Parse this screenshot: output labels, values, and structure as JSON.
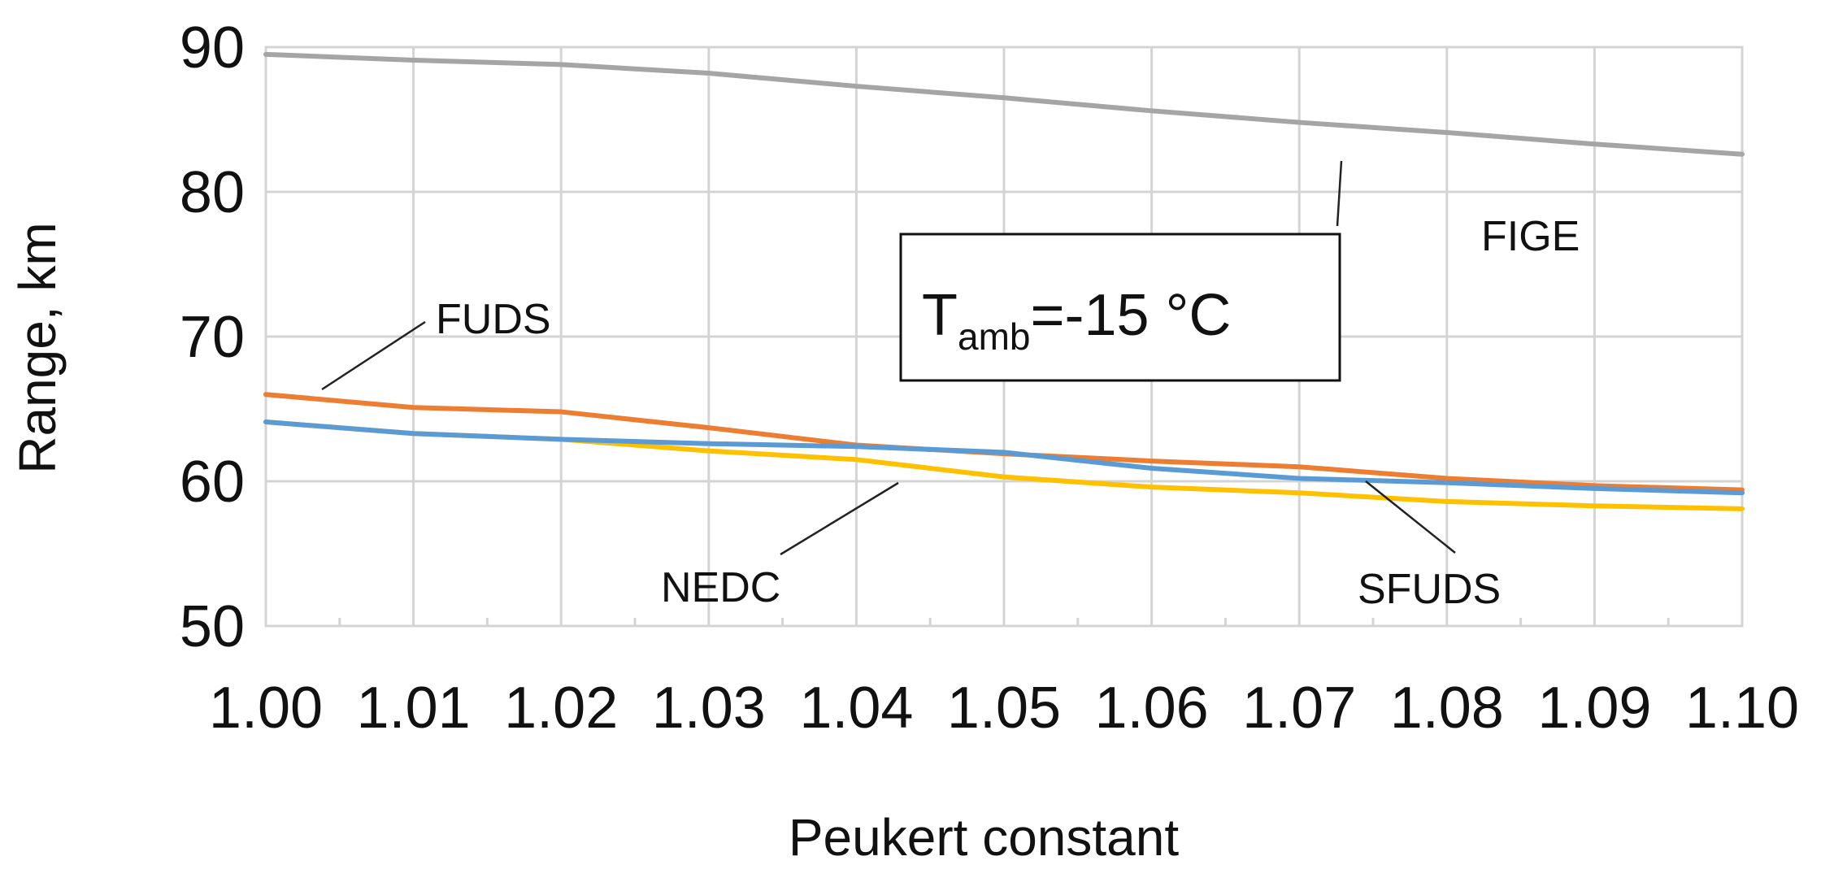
{
  "chart_data": {
    "type": "line",
    "title": "",
    "xlabel": "Peukert constant",
    "ylabel": "Range, km",
    "xlim": [
      1.0,
      1.1
    ],
    "ylim": [
      50,
      90
    ],
    "x": [
      1.0,
      1.01,
      1.02,
      1.03,
      1.04,
      1.05,
      1.06,
      1.07,
      1.08,
      1.09,
      1.1
    ],
    "x_tick_labels": [
      "1.00",
      "1.01",
      "1.02",
      "1.03",
      "1.04",
      "1.05",
      "1.06",
      "1.07",
      "1.08",
      "1.09",
      "1.10"
    ],
    "y_ticks": [
      50,
      60,
      70,
      80,
      90
    ],
    "y_tick_labels": [
      "50",
      "60",
      "70",
      "80",
      "90"
    ],
    "grid": true,
    "legend": "inline labels",
    "series": [
      {
        "name": "FIGE",
        "color": "#a5a5a5",
        "values": [
          89.5,
          89.1,
          88.8,
          88.2,
          87.3,
          86.5,
          85.6,
          84.8,
          84.1,
          83.3,
          82.6
        ]
      },
      {
        "name": "FUDS",
        "color": "#ed7d31",
        "values": [
          66.0,
          65.1,
          64.8,
          63.7,
          62.5,
          61.9,
          61.4,
          61.0,
          60.2,
          59.7,
          59.4
        ]
      },
      {
        "name": "SFUDS",
        "color": "#5b9bd5",
        "values": [
          64.1,
          63.3,
          62.9,
          62.6,
          62.4,
          62.0,
          60.9,
          60.2,
          59.9,
          59.5,
          59.2
        ]
      },
      {
        "name": "NEDC",
        "color": "#ffc000",
        "values": [
          64.1,
          63.3,
          62.9,
          62.1,
          61.5,
          60.3,
          59.6,
          59.2,
          58.6,
          58.3,
          58.1
        ]
      }
    ],
    "annotation": {
      "main": "T",
      "subscript": "amb",
      "rest": "=-15 °C"
    }
  }
}
